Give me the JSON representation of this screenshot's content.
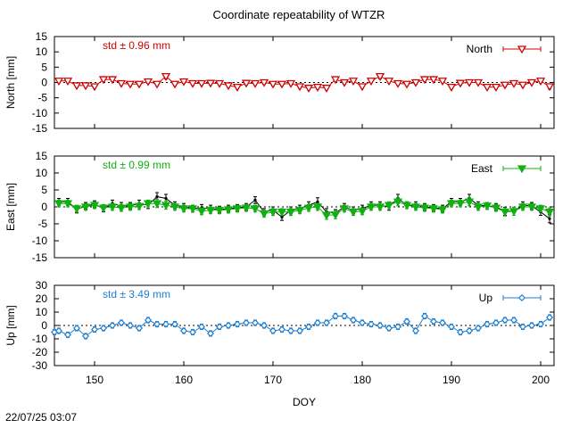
{
  "title": "Coordinate repeatability of WTZR",
  "timestamp": "22/07/25 03:07",
  "colors": {
    "north": "#d40000",
    "east": "#10b010",
    "up": "#1f7fd0",
    "raw": "#000000"
  },
  "chart_data": [
    {
      "type": "line",
      "panel": "north",
      "ylabel": "North [mm]",
      "ylim": [
        -15,
        15
      ],
      "yticks": [
        -15,
        -10,
        -5,
        0,
        5,
        10,
        15
      ],
      "xlim": [
        145.5,
        201.5
      ],
      "xticks": [
        150,
        160,
        170,
        180,
        190,
        200
      ],
      "xlabel": "",
      "legend": "top-right",
      "std_label": "std ± 0.96 mm",
      "series": [
        {
          "name": "North",
          "marker": "triangle-down-open",
          "x": [
            146,
            147,
            148,
            149,
            150,
            151,
            152,
            153,
            154,
            155,
            156,
            157,
            158,
            159,
            160,
            161,
            162,
            163,
            164,
            165,
            166,
            167,
            168,
            169,
            170,
            171,
            172,
            173,
            174,
            175,
            176,
            177,
            178,
            179,
            180,
            181,
            182,
            183,
            184,
            185,
            186,
            187,
            188,
            189,
            190,
            191,
            192,
            193,
            194,
            195,
            196,
            197,
            198,
            199,
            200,
            201
          ],
          "values": [
            0.5,
            0.5,
            -1.0,
            -1.0,
            -1.3,
            1.0,
            1.0,
            -0.3,
            -0.5,
            -0.5,
            0.3,
            -0.5,
            2.0,
            -0.5,
            0.3,
            -0.3,
            -0.3,
            -0.2,
            -0.3,
            -1.0,
            -1.5,
            -0.2,
            -0.3,
            0.0,
            -0.5,
            -0.5,
            -0.3,
            -1.3,
            -1.8,
            -1.5,
            -1.8,
            1.0,
            0.0,
            0.5,
            -1.3,
            0.5,
            2.0,
            0.5,
            -0.3,
            -0.5,
            0.0,
            1.0,
            1.0,
            0.5,
            -1.5,
            -0.2,
            0.0,
            0.0,
            -1.5,
            -1.5,
            -0.8,
            -0.3,
            -0.8,
            0.0,
            0.5,
            -1.3
          ],
          "err": [
            0.6,
            0.6,
            0.6,
            0.6,
            0.6,
            0.6,
            0.6,
            0.6,
            0.6,
            0.6,
            0.6,
            0.6,
            0.8,
            0.6,
            0.6,
            0.6,
            0.6,
            0.6,
            0.6,
            0.6,
            0.6,
            0.6,
            0.6,
            0.6,
            0.6,
            0.6,
            0.6,
            0.6,
            0.6,
            0.6,
            0.6,
            0.6,
            0.6,
            0.6,
            0.6,
            0.6,
            0.8,
            0.6,
            0.6,
            0.6,
            0.6,
            0.6,
            0.6,
            0.6,
            0.6,
            0.6,
            0.6,
            0.6,
            0.6,
            0.6,
            0.6,
            0.6,
            0.6,
            0.6,
            0.6,
            0.8
          ]
        }
      ]
    },
    {
      "type": "line",
      "panel": "east",
      "ylabel": "East [mm]",
      "ylim": [
        -15,
        15
      ],
      "yticks": [
        -15,
        -10,
        -5,
        0,
        5,
        10,
        15
      ],
      "xlim": [
        145.5,
        201.5
      ],
      "xticks": [
        150,
        160,
        170,
        180,
        190,
        200
      ],
      "xlabel": "",
      "legend": "top-right",
      "std_label": "std ± 0.99 mm",
      "series": [
        {
          "name": "East",
          "marker": "triangle-down-filled",
          "x": [
            146,
            147,
            148,
            149,
            150,
            151,
            152,
            153,
            154,
            155,
            156,
            157,
            158,
            159,
            160,
            161,
            162,
            163,
            164,
            165,
            166,
            167,
            168,
            169,
            170,
            171,
            172,
            173,
            174,
            175,
            176,
            177,
            178,
            179,
            180,
            181,
            182,
            183,
            184,
            185,
            186,
            187,
            188,
            189,
            190,
            191,
            192,
            193,
            194,
            195,
            196,
            197,
            198,
            199,
            200,
            201
          ],
          "values": [
            1.0,
            1.0,
            -0.5,
            0.0,
            0.5,
            -0.3,
            0.0,
            -0.3,
            0.0,
            0.2,
            1.0,
            1.0,
            0.5,
            0.0,
            -0.5,
            -0.5,
            -1.3,
            -1.0,
            -1.0,
            -0.8,
            -0.5,
            -0.3,
            -0.5,
            -2.0,
            -1.5,
            -1.5,
            -1.5,
            -1.0,
            -0.3,
            0.0,
            -2.5,
            -2.3,
            -0.5,
            -1.5,
            -1.3,
            0.0,
            0.0,
            0.5,
            1.5,
            0.5,
            0.0,
            -0.3,
            -0.5,
            -0.8,
            1.0,
            1.0,
            1.5,
            0.0,
            0.3,
            -0.3,
            -1.5,
            -1.3,
            0.0,
            0.0,
            -0.5,
            -1.5
          ],
          "err": [
            1.0,
            1.0,
            1.0,
            1.0,
            1.0,
            1.0,
            1.0,
            1.0,
            1.0,
            1.0,
            1.0,
            1.2,
            1.2,
            1.0,
            1.0,
            1.0,
            1.0,
            1.0,
            1.0,
            1.0,
            1.0,
            1.0,
            1.0,
            1.0,
            1.0,
            1.0,
            1.0,
            1.0,
            1.0,
            1.0,
            1.2,
            1.2,
            1.0,
            1.0,
            1.0,
            1.0,
            1.0,
            1.0,
            1.2,
            1.0,
            1.0,
            1.0,
            1.0,
            1.0,
            1.0,
            1.0,
            1.2,
            1.0,
            1.0,
            1.0,
            1.2,
            1.2,
            1.0,
            1.0,
            1.0,
            1.2
          ]
        },
        {
          "name": "",
          "marker": "small-dot",
          "x": [
            146,
            147,
            148,
            149,
            150,
            151,
            152,
            153,
            154,
            155,
            156,
            157,
            158,
            159,
            160,
            161,
            162,
            163,
            164,
            165,
            166,
            167,
            168,
            169,
            170,
            171,
            172,
            173,
            174,
            175,
            176,
            177,
            178,
            179,
            180,
            181,
            182,
            183,
            184,
            185,
            186,
            187,
            188,
            189,
            190,
            191,
            192,
            193,
            194,
            195,
            196,
            197,
            198,
            199,
            200,
            201
          ],
          "values": [
            1.5,
            1.5,
            -0.8,
            0.3,
            0.8,
            -0.5,
            1.0,
            0.3,
            0.3,
            1.0,
            0.5,
            3.0,
            2.5,
            0.5,
            0.0,
            -0.5,
            -0.3,
            -0.5,
            -0.8,
            -0.5,
            -0.3,
            0.0,
            2.0,
            -1.5,
            -1.0,
            -3.0,
            -1.0,
            -0.5,
            0.5,
            1.5,
            -1.5,
            -1.8,
            0.0,
            -1.0,
            -0.5,
            0.5,
            0.5,
            0.0,
            2.5,
            0.5,
            0.5,
            0.0,
            -0.3,
            -0.5,
            1.5,
            1.5,
            2.5,
            0.5,
            0.3,
            0.0,
            -1.3,
            -1.3,
            0.5,
            0.3,
            -1.5,
            -3.5
          ],
          "err": [
            1.0,
            1.0,
            1.0,
            1.0,
            1.0,
            1.0,
            1.0,
            1.0,
            1.0,
            1.0,
            1.0,
            1.2,
            1.2,
            1.0,
            1.0,
            1.0,
            1.0,
            1.0,
            1.0,
            1.0,
            1.0,
            1.0,
            1.0,
            1.0,
            1.0,
            1.0,
            1.0,
            1.0,
            1.0,
            1.2,
            1.0,
            1.0,
            1.0,
            1.0,
            1.0,
            1.0,
            1.0,
            1.0,
            1.2,
            1.0,
            1.0,
            1.0,
            1.0,
            1.0,
            1.0,
            1.0,
            1.2,
            1.0,
            1.0,
            1.0,
            1.2,
            1.2,
            1.0,
            1.0,
            1.0,
            1.2
          ]
        }
      ]
    },
    {
      "type": "line",
      "panel": "up",
      "ylabel": "Up [mm]",
      "ylim": [
        -30,
        30
      ],
      "yticks": [
        -30,
        -20,
        -10,
        0,
        10,
        20,
        30
      ],
      "xlim": [
        145.5,
        201.5
      ],
      "xticks": [
        150,
        160,
        170,
        180,
        190,
        200
      ],
      "xlabel": "DOY",
      "legend": "top-right",
      "std_label": "std ± 3.49 mm",
      "series": [
        {
          "name": "Up",
          "marker": "diamond-open",
          "x": [
            145.5,
            146,
            147,
            148,
            149,
            150,
            151,
            152,
            153,
            154,
            155,
            156,
            157,
            158,
            159,
            160,
            161,
            162,
            163,
            164,
            165,
            166,
            167,
            168,
            169,
            170,
            171,
            172,
            173,
            174,
            175,
            176,
            177,
            178,
            179,
            180,
            181,
            182,
            183,
            184,
            185,
            186,
            187,
            188,
            189,
            190,
            191,
            192,
            193,
            194,
            195,
            196,
            197,
            198,
            199,
            200,
            201
          ],
          "values": [
            -5,
            -4,
            -7,
            -2,
            -8,
            -3,
            -2,
            0,
            2,
            0,
            -2,
            4,
            1,
            1,
            1,
            -4,
            -5,
            -1,
            -6,
            -1,
            0,
            1,
            2,
            2,
            0,
            -4,
            -3,
            -4,
            -4,
            -1,
            2,
            2,
            7,
            7,
            4,
            2,
            1,
            0,
            -2,
            -1,
            3,
            -4,
            7,
            3,
            2,
            -1,
            -5,
            -4,
            -2,
            1,
            2,
            4,
            4,
            -1,
            0,
            1,
            6
          ],
          "err": [
            2,
            2,
            2,
            2,
            2,
            2,
            2,
            2,
            2,
            2,
            2,
            2,
            2,
            2,
            2,
            2,
            2,
            2,
            2,
            2,
            2,
            2,
            2,
            2,
            2,
            2,
            2,
            2,
            2,
            2,
            2,
            2,
            2,
            2,
            2,
            2,
            2,
            2,
            2,
            2,
            2,
            2,
            2,
            2,
            2,
            2,
            2,
            2,
            2,
            2,
            2,
            2,
            2,
            2,
            2,
            2,
            2
          ]
        }
      ]
    }
  ]
}
